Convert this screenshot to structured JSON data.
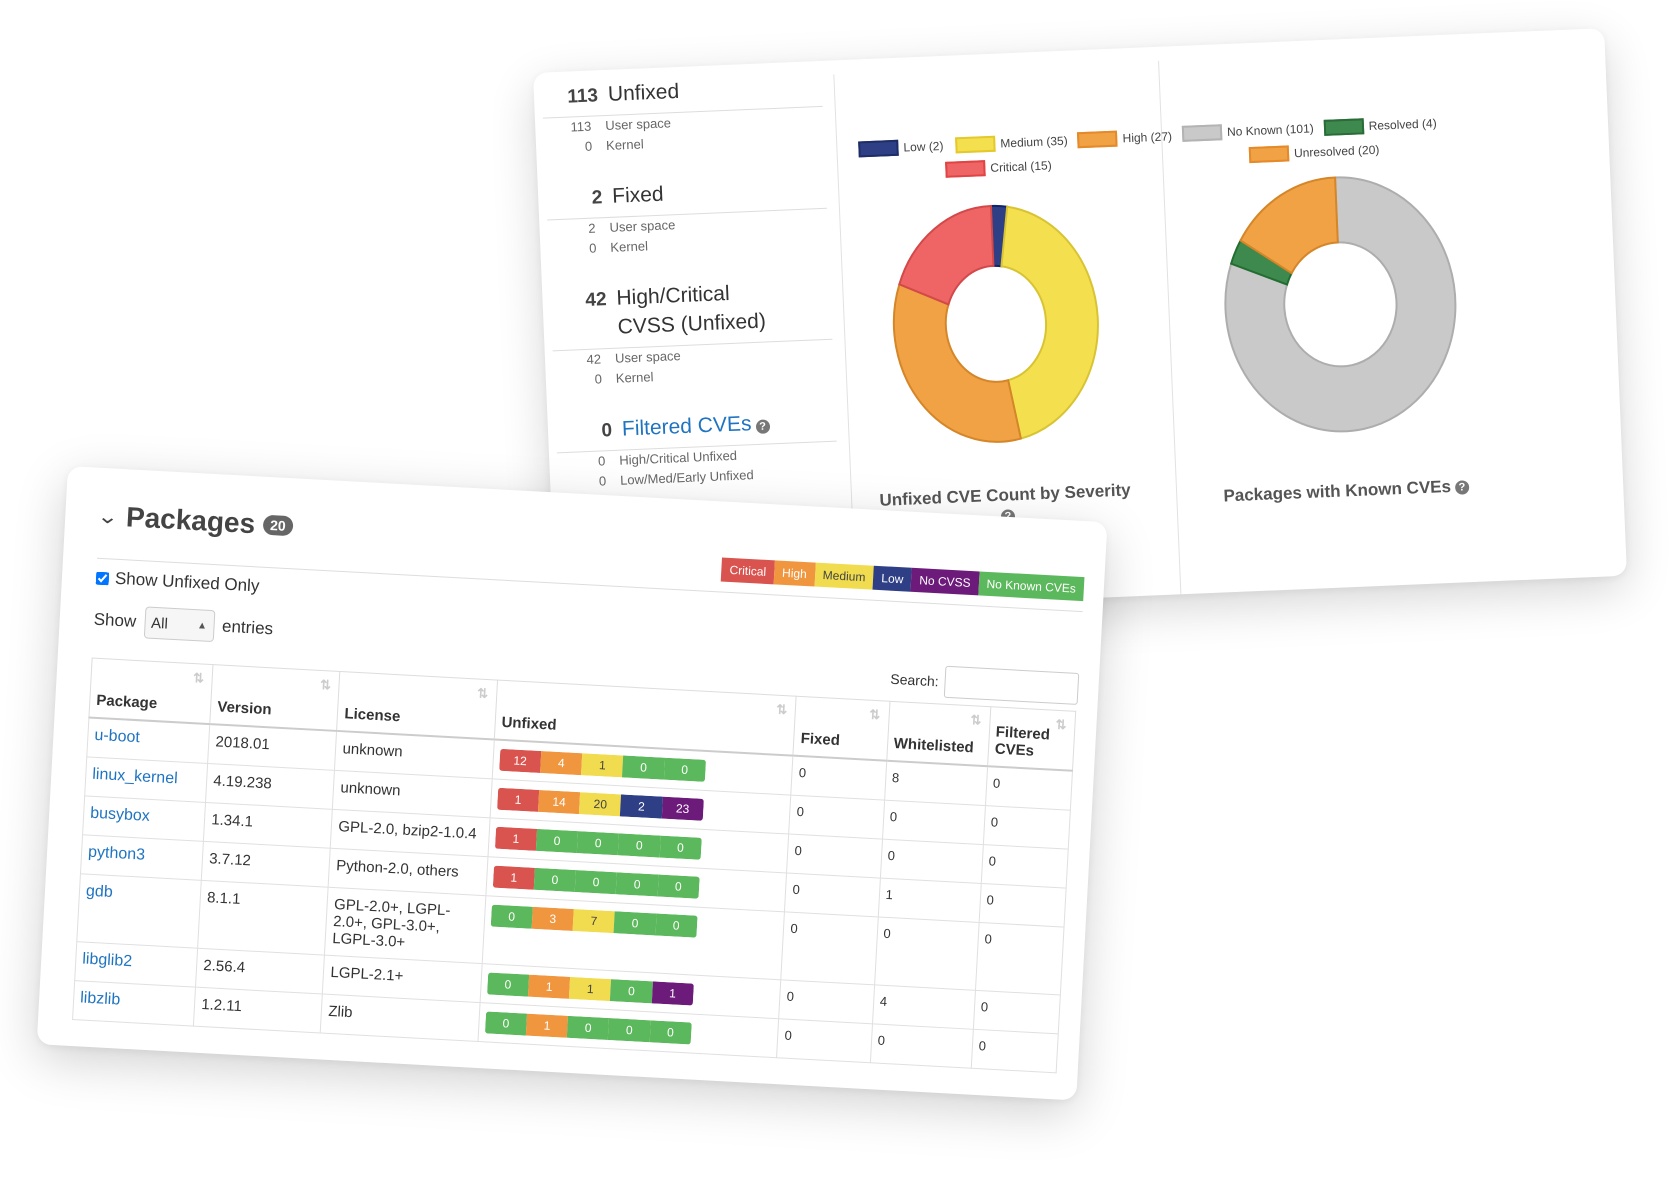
{
  "stats": [
    {
      "num": "113",
      "label": "Unfixed",
      "sub": [
        {
          "n": "113",
          "label": "User space"
        },
        {
          "n": "0",
          "label": "Kernel"
        }
      ]
    },
    {
      "num": "2",
      "label": "Fixed",
      "sub": [
        {
          "n": "2",
          "label": "User space"
        },
        {
          "n": "0",
          "label": "Kernel"
        }
      ]
    },
    {
      "num": "42",
      "label": "High/Critical CVSS (Unfixed)",
      "sub": [
        {
          "n": "42",
          "label": "User space"
        },
        {
          "n": "0",
          "label": "Kernel"
        }
      ]
    },
    {
      "num": "0",
      "label": "Filtered CVEs",
      "sub": [
        {
          "n": "0",
          "label": "High/Critical Unfixed"
        },
        {
          "n": "0",
          "label": "Low/Med/Early Unfixed"
        }
      ]
    }
  ],
  "severity_chart": {
    "title": "Unfixed CVE Count by Severity",
    "legend": [
      "Low (2)",
      "Medium (35)",
      "High (27)",
      "Critical (15)"
    ]
  },
  "packages_chart": {
    "title": "Packages with Known CVEs",
    "legend": [
      "No Known (101)",
      "Resolved (4)",
      "Unresolved (20)"
    ]
  },
  "chart_data": [
    {
      "type": "pie",
      "title": "Unfixed CVE Count by Severity",
      "categories": [
        "Low",
        "Medium",
        "High",
        "Critical"
      ],
      "values": [
        2,
        35,
        27,
        15
      ],
      "colors": [
        "#2f3f86",
        "#f4e04f",
        "#f0a244",
        "#ef6464"
      ],
      "legend": "top"
    },
    {
      "type": "pie",
      "title": "Packages with Known CVEs",
      "categories": [
        "No Known",
        "Resolved",
        "Unresolved"
      ],
      "values": [
        101,
        4,
        20
      ],
      "colors": [
        "#c9c9c9",
        "#3e8a4e",
        "#f0a244"
      ],
      "legend": "top"
    }
  ],
  "packages": {
    "title": "Packages",
    "count": "20",
    "severity_legend": [
      "Critical",
      "High",
      "Medium",
      "Low",
      "No CVSS",
      "No Known CVEs"
    ],
    "show_unfixed_label": "Show Unfixed Only",
    "show_label": "Show",
    "entries_label": "entries",
    "length_value": "All",
    "search_label": "Search:",
    "columns": [
      "Package",
      "Version",
      "License",
      "Unfixed",
      "Fixed",
      "Whitelisted",
      "Filtered CVEs"
    ],
    "rows": [
      {
        "pkg": "u-boot",
        "version": "2018.01",
        "license": "unknown",
        "unfixed": [
          "12",
          "4",
          "1",
          "0",
          "0"
        ],
        "fixed": "0",
        "whitelisted": "8",
        "filtered": "0"
      },
      {
        "pkg": "linux_kernel",
        "version": "4.19.238",
        "license": "unknown",
        "unfixed": [
          "1",
          "14",
          "20",
          "2",
          "23"
        ],
        "fixed": "0",
        "whitelisted": "0",
        "filtered": "0"
      },
      {
        "pkg": "busybox",
        "version": "1.34.1",
        "license": "GPL-2.0, bzip2-1.0.4",
        "unfixed": [
          "1",
          "0",
          "0",
          "0",
          "0"
        ],
        "fixed": "0",
        "whitelisted": "0",
        "filtered": "0"
      },
      {
        "pkg": "python3",
        "version": "3.7.12",
        "license": "Python-2.0, others",
        "unfixed": [
          "1",
          "0",
          "0",
          "0",
          "0"
        ],
        "fixed": "0",
        "whitelisted": "1",
        "filtered": "0"
      },
      {
        "pkg": "gdb",
        "version": "8.1.1",
        "license": "GPL-2.0+, LGPL-2.0+, GPL-3.0+, LGPL-3.0+",
        "unfixed": [
          "0",
          "3",
          "7",
          "0",
          "0"
        ],
        "fixed": "0",
        "whitelisted": "0",
        "filtered": "0"
      },
      {
        "pkg": "libglib2",
        "version": "2.56.4",
        "license": "LGPL-2.1+",
        "unfixed": [
          "0",
          "1",
          "1",
          "0",
          "1"
        ],
        "fixed": "0",
        "whitelisted": "4",
        "filtered": "0"
      },
      {
        "pkg": "libzlib",
        "version": "1.2.11",
        "license": "Zlib",
        "unfixed": [
          "0",
          "1",
          "0",
          "0",
          "0"
        ],
        "fixed": "0",
        "whitelisted": "0",
        "filtered": "0"
      }
    ]
  }
}
